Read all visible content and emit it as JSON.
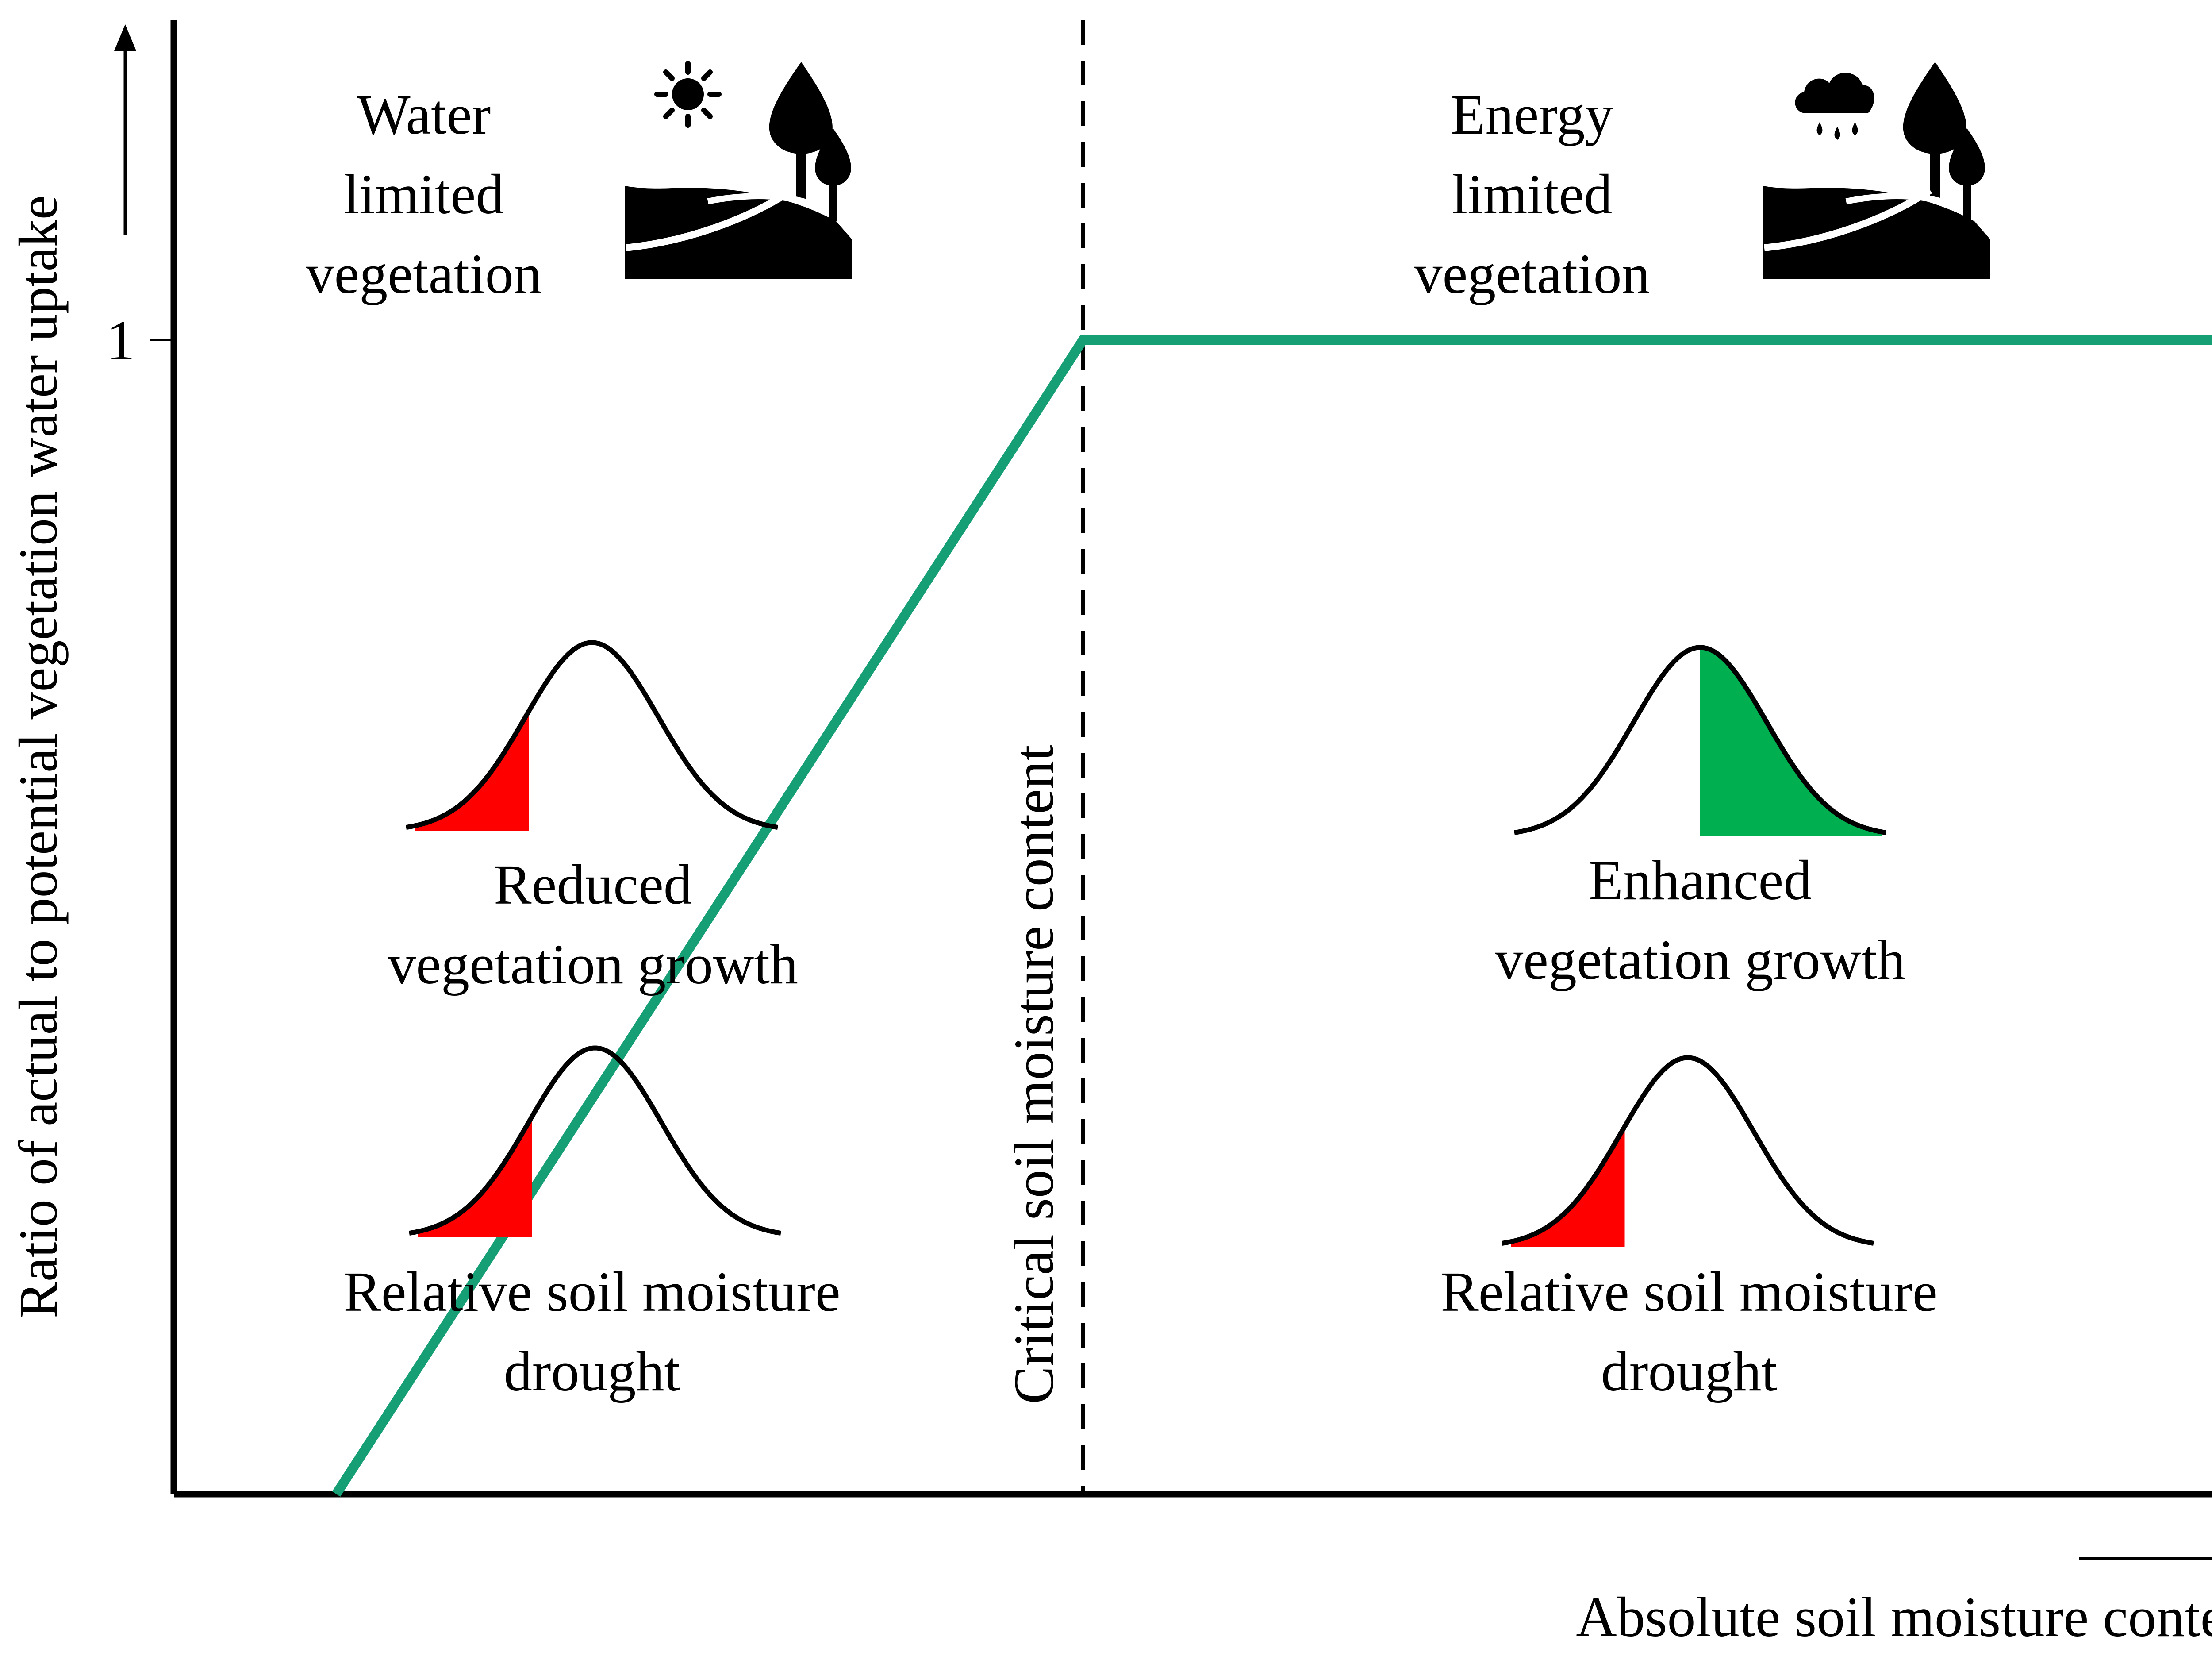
{
  "y_axis": {
    "label": "Ratio of actual to potential vegetation water uptake",
    "tick_label": "1"
  },
  "x_axis": {
    "label": "Absolute soil moisture content"
  },
  "threshold": {
    "label": "Critical soil moisture content"
  },
  "regimes": {
    "left": {
      "lines": [
        "Water",
        "limited",
        "vegetation"
      ],
      "icon": "sun-landscape-icon"
    },
    "right": {
      "lines": [
        "Energy",
        "limited",
        "vegetation"
      ],
      "icon": "rain-landscape-icon"
    }
  },
  "distributions": {
    "left_upper": {
      "lines": [
        "Reduced",
        "vegetation growth"
      ],
      "shade": "lower-tail"
    },
    "left_lower": {
      "lines": [
        "Relative soil moisture",
        "drought"
      ],
      "shade": "lower-tail"
    },
    "right_upper": {
      "lines": [
        "Enhanced",
        "vegetation growth"
      ],
      "shade": "upper-half"
    },
    "right_lower": {
      "lines": [
        "Relative soil moisture",
        "drought"
      ],
      "shade": "lower-tail"
    }
  },
  "colors": {
    "uptake_line": "#169e74",
    "drought_fill": "#ff0000",
    "growth_fill": "#00b050",
    "axis": "#000000"
  }
}
